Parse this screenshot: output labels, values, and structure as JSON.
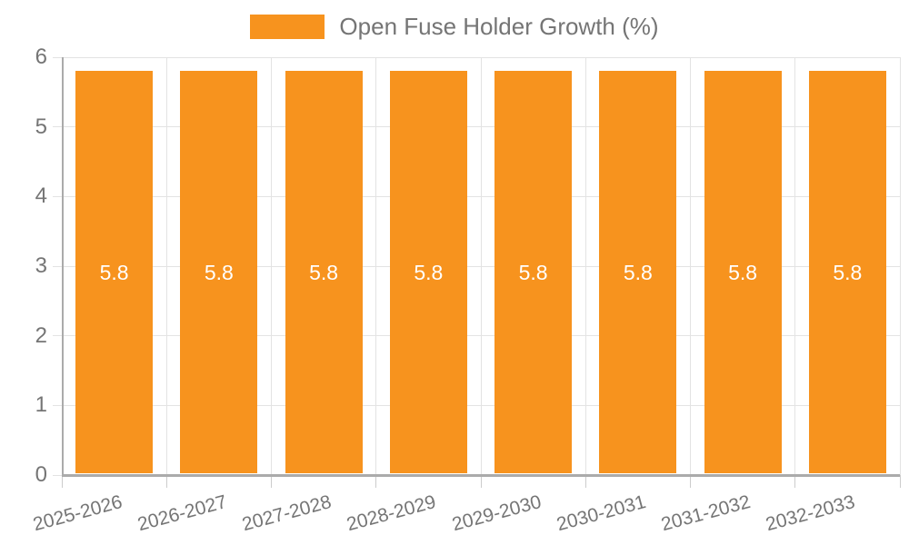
{
  "chart_data": {
    "type": "bar",
    "title": "Open Fuse Holder Growth (%)",
    "legend": {
      "position": "top",
      "label": "Open Fuse Holder Growth (%)"
    },
    "categories": [
      "2025-2026",
      "2026-2027",
      "2027-2028",
      "2028-2029",
      "2029-2030",
      "2030-2031",
      "2031-2032",
      "2032-2033"
    ],
    "series": [
      {
        "name": "Open Fuse Holder Growth (%)",
        "values": [
          5.8,
          5.8,
          5.8,
          5.8,
          5.8,
          5.8,
          5.8,
          5.8
        ]
      }
    ],
    "data_labels": [
      "5.8",
      "5.8",
      "5.8",
      "5.8",
      "5.8",
      "5.8",
      "5.8",
      "5.8"
    ],
    "xlabel": "",
    "ylabel": "",
    "ylim": [
      0,
      6
    ],
    "yticks": [
      0,
      1,
      2,
      3,
      4,
      5,
      6
    ],
    "grid": "on",
    "colors": {
      "bar": "#F7931E",
      "grid_line": "#E3E3E3",
      "axis_line": "#ABABAB",
      "tick_line": "#CCCCCC",
      "text": "#757575",
      "bar_label_text": "#FFFFFF",
      "background": "#FFFFFF"
    }
  }
}
